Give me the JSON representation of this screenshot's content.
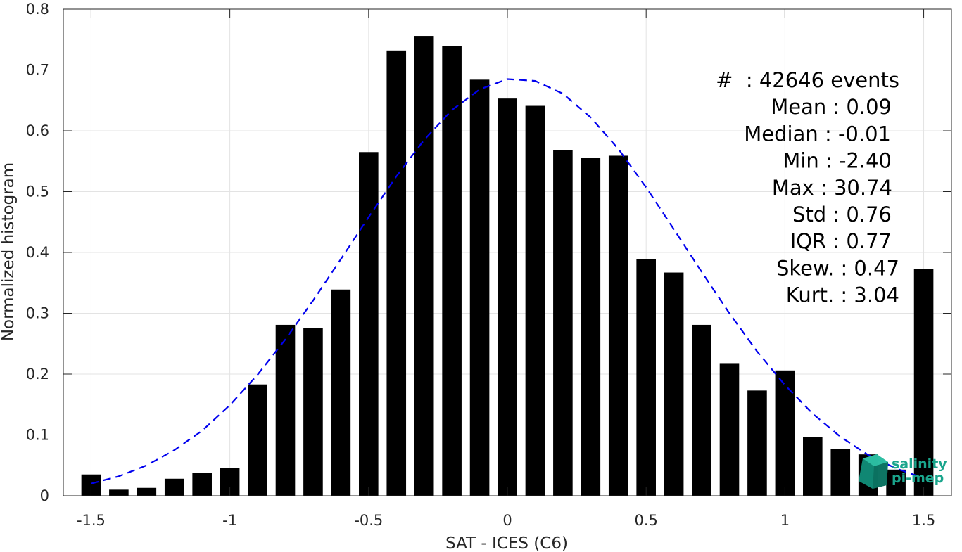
{
  "chart_data": {
    "type": "bar",
    "xlabel": "SAT - ICES (C6)",
    "ylabel": "Normalized histogram",
    "xlim": [
      -1.6,
      1.6
    ],
    "ylim": [
      0,
      0.8
    ],
    "grid": true,
    "xticks": [
      -1.5,
      -1,
      -0.5,
      0,
      0.5,
      1,
      1.5
    ],
    "xtick_labels": [
      "-1.5",
      "-1",
      "-0.5",
      "0",
      "0.5",
      "1",
      "1.5"
    ],
    "yticks": [
      0,
      0.1,
      0.2,
      0.3,
      0.4,
      0.5,
      0.6,
      0.7,
      0.8
    ],
    "ytick_labels": [
      "0",
      "0.1",
      "0.2",
      "0.3",
      "0.4",
      "0.5",
      "0.6",
      "0.7",
      "0.8"
    ],
    "bar_color": "#000000",
    "bars": {
      "x": [
        -1.5,
        -1.4,
        -1.3,
        -1.2,
        -1.1,
        -1.0,
        -0.9,
        -0.8,
        -0.7,
        -0.6,
        -0.5,
        -0.4,
        -0.3,
        -0.2,
        -0.1,
        0.0,
        0.1,
        0.2,
        0.3,
        0.4,
        0.5,
        0.6,
        0.7,
        0.8,
        0.9,
        1.0,
        1.1,
        1.2,
        1.3,
        1.4,
        1.5
      ],
      "values": [
        0.035,
        0.01,
        0.013,
        0.028,
        0.038,
        0.046,
        0.183,
        0.281,
        0.276,
        0.339,
        0.565,
        0.732,
        0.756,
        0.739,
        0.684,
        0.653,
        0.641,
        0.568,
        0.555,
        0.559,
        0.389,
        0.367,
        0.281,
        0.218,
        0.173,
        0.206,
        0.096,
        0.077,
        0.068,
        0.043,
        0.373
      ],
      "width": 0.07
    },
    "fit_curve": {
      "style": "dashed",
      "color": "#0000ee",
      "x": [
        -1.5,
        -1.4,
        -1.3,
        -1.2,
        -1.1,
        -1.0,
        -0.9,
        -0.8,
        -0.7,
        -0.6,
        -0.5,
        -0.4,
        -0.3,
        -0.2,
        -0.1,
        0.0,
        0.1,
        0.2,
        0.3,
        0.4,
        0.5,
        0.6,
        0.7,
        0.8,
        0.9,
        1.0,
        1.1,
        1.2,
        1.3,
        1.4,
        1.5
      ],
      "y": [
        0.02,
        0.032,
        0.05,
        0.075,
        0.107,
        0.149,
        0.199,
        0.257,
        0.321,
        0.389,
        0.458,
        0.525,
        0.585,
        0.634,
        0.668,
        0.685,
        0.682,
        0.661,
        0.622,
        0.57,
        0.507,
        0.438,
        0.368,
        0.3,
        0.237,
        0.182,
        0.135,
        0.097,
        0.067,
        0.045,
        0.029
      ]
    },
    "stats": [
      "#  : 42646 events",
      "Mean : 0.09",
      "Median : -0.01",
      "Min : -2.40",
      "Max : 30.74",
      "Std : 0.76",
      "IQR : 0.77",
      "Skew. : 0.47",
      "Kurt. : 3.04"
    ]
  },
  "logo": {
    "line1": "salinity",
    "line2": "pi-mep",
    "color": "#1aa58c"
  }
}
